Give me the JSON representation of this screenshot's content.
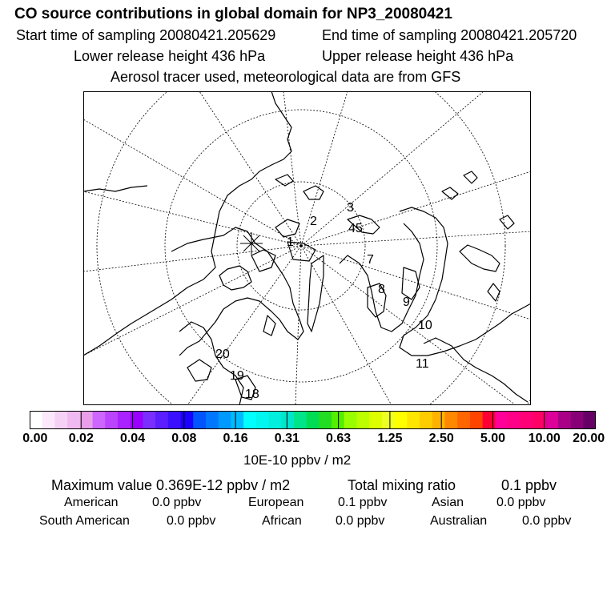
{
  "header": {
    "title": "CO  source contributions in global domain for NP3_20080421",
    "start_time": "Start time of sampling 20080421.205629",
    "end_time": "End time of sampling 20080421.205720",
    "lower_height": "Lower release height  436 hPa",
    "upper_height": "Upper release height  436 hPa",
    "note": "Aerosol tracer used, meteorological data are from GFS"
  },
  "map": {
    "points": [
      {
        "label": "1"
      },
      {
        "label": "2"
      },
      {
        "label": "3"
      },
      {
        "label": "45"
      },
      {
        "label": "7"
      },
      {
        "label": "8"
      },
      {
        "label": "9"
      },
      {
        "label": "10"
      },
      {
        "label": "11"
      },
      {
        "label": "20"
      },
      {
        "label": "19"
      },
      {
        "label": "18"
      }
    ],
    "land_color": "#000000",
    "grid_color": "#000000"
  },
  "colorbar": {
    "colors": [
      "#ffffff",
      "#fbe8fb",
      "#f5d2f5",
      "#efbaef",
      "#e89ee8",
      "#cc66ff",
      "#bb44ff",
      "#aa22ff",
      "#9900ff",
      "#7a2eff",
      "#5a1eff",
      "#3b10ff",
      "#1a00ff",
      "#0055ff",
      "#0077ff",
      "#0099ff",
      "#00bbff",
      "#00ffff",
      "#00f6ef",
      "#00eedd",
      "#00e6cc",
      "#00e58a",
      "#00dd55",
      "#22dd22",
      "#55ee00",
      "#99ff00",
      "#bbff00",
      "#ddff00",
      "#eeff22",
      "#ffff00",
      "#ffe600",
      "#ffcc00",
      "#ffb300",
      "#ff8800",
      "#ff6600",
      "#ff4400",
      "#ff0033",
      "#ff0099",
      "#ff0088",
      "#ff0077",
      "#ff0066",
      "#dd0099",
      "#aa0088",
      "#880077",
      "#660066"
    ],
    "ticks": [
      "0.00",
      "0.02",
      "0.04",
      "0.08",
      "0.16",
      "0.31",
      "0.63",
      "1.25",
      "2.50",
      "5.00",
      "10.00",
      "20.00"
    ],
    "units": "10E-10 ppbv / m2"
  },
  "stats": {
    "max_value": "Maximum value  0.369E-12 ppbv / m2",
    "total_label": "Total mixing ratio",
    "total_value": "0.1 ppbv",
    "american_label": "American",
    "american_value": "0.0 ppbv",
    "european_label": "European",
    "european_value": "0.1 ppbv",
    "asian_label": "Asian",
    "asian_value": "0.0 ppbv",
    "south_american_label": "South American",
    "south_american_value": "0.0 ppbv",
    "african_label": "African",
    "african_value": "0.0 ppbv",
    "australian_label": "Australian",
    "australian_value": "0.0 ppbv"
  }
}
